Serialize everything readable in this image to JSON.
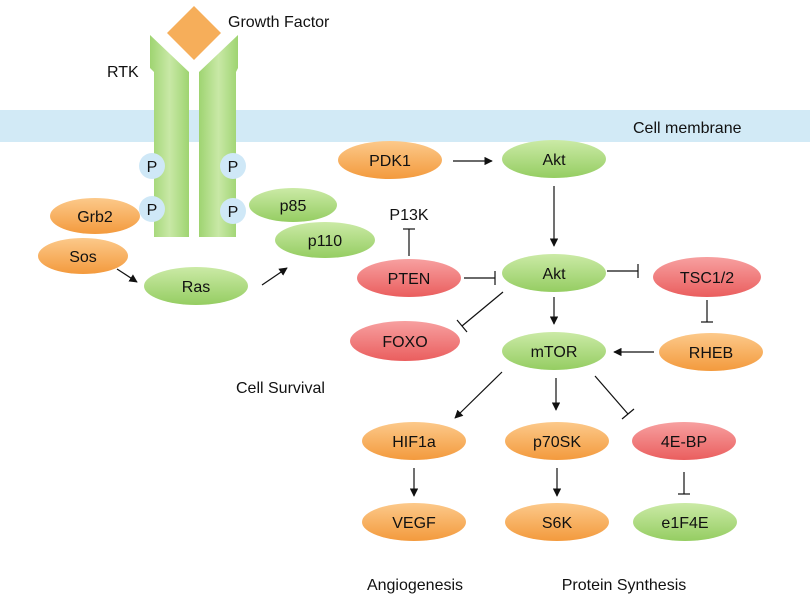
{
  "labels": {
    "growth_factor": "Growth Factor",
    "rtk": "RTK",
    "cell_membrane": "Cell membrane",
    "p13k": "P13K",
    "cell_survival": "Cell Survival",
    "angiogenesis": "Angiogenesis",
    "protein_synthesis": "Protein Synthesis",
    "phospho": "P"
  },
  "nodes": {
    "pdk1": "PDK1",
    "akt_top": "Akt",
    "grb2": "Grb2",
    "sos": "Sos",
    "p85": "p85",
    "p110": "p110",
    "ras": "Ras",
    "pten": "PTEN",
    "akt_mid": "Akt",
    "tsc": "TSC1/2",
    "foxo": "FOXO",
    "mtor": "mTOR",
    "rheb": "RHEB",
    "hif1a": "HIF1a",
    "p70sk": "p70SK",
    "fourebp": "4E-BP",
    "vegf": "VEGF",
    "s6k": "S6K",
    "e1f4e": "e1F4E"
  },
  "colors": {
    "green": "#a8d878",
    "orange": "#f8ae5a",
    "red": "#f07878",
    "membrane": "#d2eaf6",
    "phospho_circle": "#cfe8f7",
    "growth_factor": "#f6ae5a",
    "receptor": "#b8df92"
  }
}
